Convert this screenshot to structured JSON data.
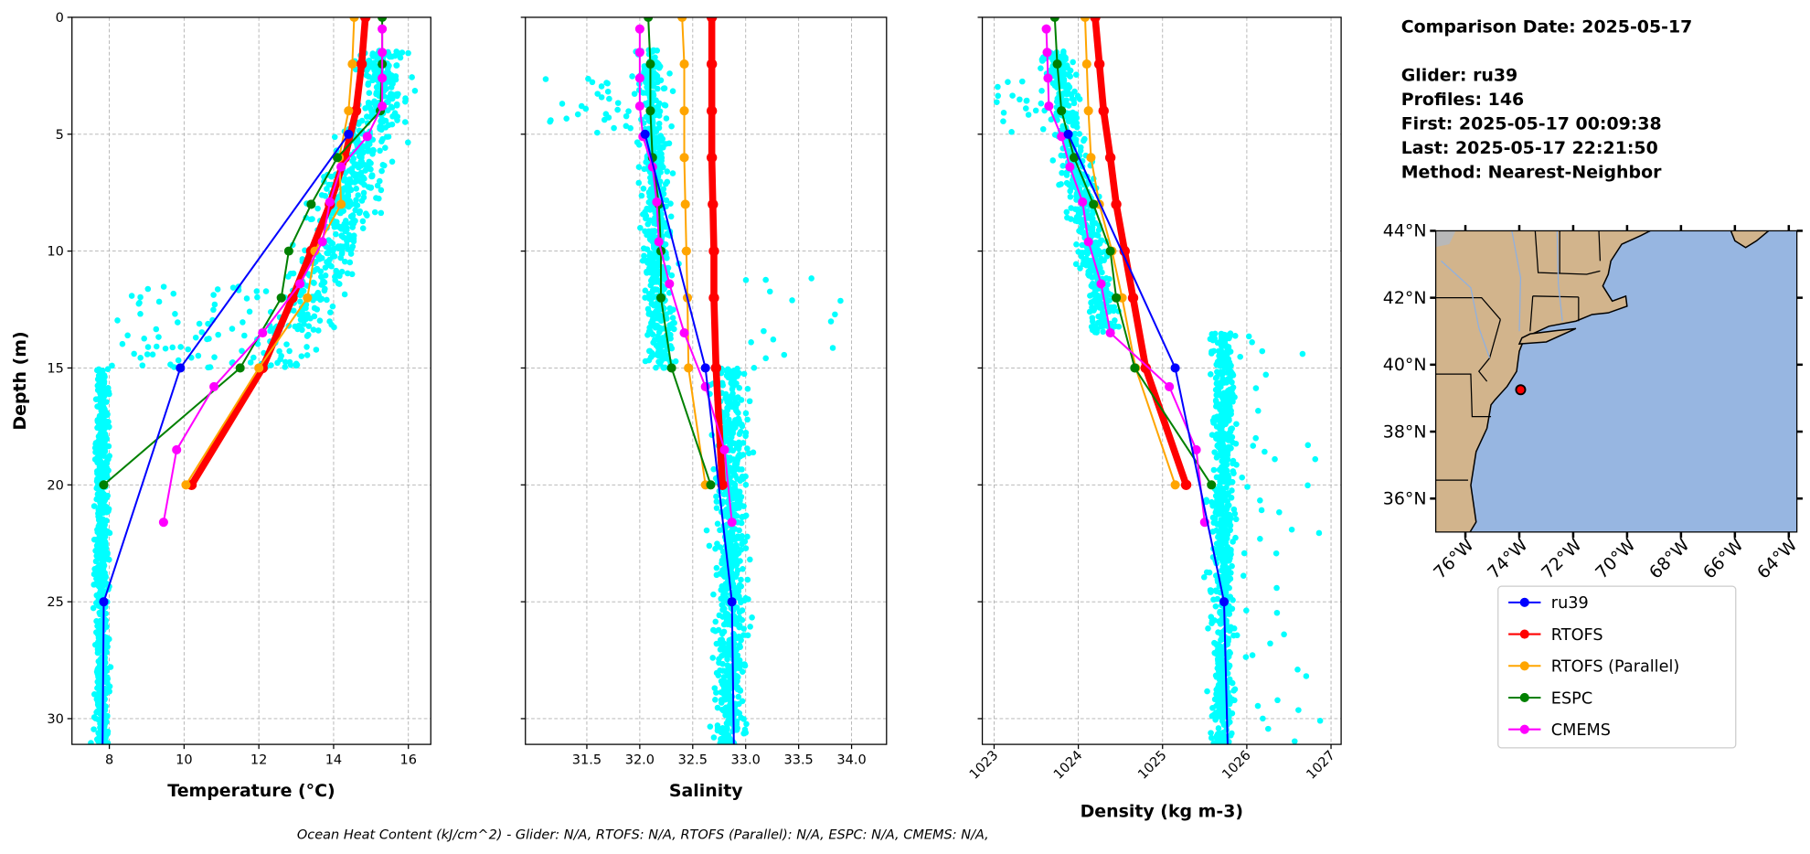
{
  "info": {
    "comparison_date": "Comparison Date: 2025-05-17",
    "glider": "Glider: ru39",
    "profiles": "Profiles: 146",
    "first": "First: 2025-05-17 00:09:38",
    "last": "Last: 2025-05-17 22:21:50",
    "method": "Method: Nearest-Neighbor"
  },
  "footer": "Ocean Heat Content (kJ/cm^2) - Glider: N/A,  RTOFS: N/A,  RTOFS (Parallel): N/A,  ESPC: N/A,  CMEMS: N/A,",
  "colors": {
    "ru39": "#0000ff",
    "RTOFS": "#ff0000",
    "RTOFS (Parallel)": "#ffa500",
    "ESPC": "#008000",
    "CMEMS": "#ff00ff",
    "glider_scatter": "#00ffff",
    "land": "#d2b48c",
    "ocean": "#97b6e1"
  },
  "chart_data": [
    {
      "type": "line",
      "key": "temp",
      "xlabel": "Temperature (°C)",
      "ylabel": "Depth (m)",
      "xlim": [
        7.0,
        16.6
      ],
      "ylim": [
        31.1,
        0
      ],
      "xticks": [
        "8",
        "10",
        "12",
        "14",
        "16"
      ],
      "yticks": [
        "0",
        "5",
        "10",
        "15",
        "20",
        "25",
        "30"
      ],
      "grid": true,
      "series": [
        {
          "name": "ru39",
          "depth": [
            5,
            15,
            25,
            35
          ],
          "values": [
            14.4,
            9.9,
            7.85,
            7.8
          ]
        },
        {
          "name": "RTOFS",
          "depth": [
            0,
            2,
            4,
            6,
            8,
            10,
            12,
            15,
            20
          ],
          "values": [
            14.85,
            14.75,
            14.6,
            14.3,
            13.9,
            13.4,
            12.9,
            12.1,
            10.2
          ]
        },
        {
          "name": "RTOFS (Parallel)",
          "depth": [
            0,
            2,
            4,
            6,
            8,
            10,
            12,
            15,
            20
          ],
          "values": [
            14.55,
            14.5,
            14.4,
            14.15,
            14.2,
            13.5,
            13.3,
            12.0,
            10.05
          ]
        },
        {
          "name": "ESPC",
          "depth": [
            0,
            2,
            4,
            6,
            8,
            10,
            12,
            15,
            20
          ],
          "values": [
            15.3,
            15.3,
            15.25,
            14.1,
            13.4,
            12.8,
            12.6,
            11.5,
            7.85
          ]
        },
        {
          "name": "CMEMS",
          "depth": [
            0.5,
            1.5,
            2.6,
            3.8,
            5.1,
            6.4,
            7.9,
            9.6,
            11.4,
            13.5,
            15.8,
            18.5,
            21.6
          ],
          "values": [
            15.3,
            15.3,
            15.3,
            15.3,
            14.9,
            14.2,
            13.9,
            13.7,
            13.1,
            12.1,
            10.8,
            9.8,
            9.45
          ]
        }
      ]
    },
    {
      "type": "line",
      "key": "sal",
      "xlabel": "Salinity",
      "xlim": [
        30.92,
        34.33
      ],
      "ylim": [
        31.1,
        0
      ],
      "xticks": [
        "31.5",
        "32.0",
        "32.5",
        "33.0",
        "33.5",
        "34.0"
      ],
      "grid": true,
      "series": [
        {
          "name": "ru39",
          "depth": [
            5,
            15,
            25,
            35
          ],
          "values": [
            32.05,
            32.62,
            32.87,
            32.9
          ]
        },
        {
          "name": "RTOFS",
          "depth": [
            0,
            2,
            4,
            6,
            8,
            10,
            12,
            15,
            20
          ],
          "values": [
            32.68,
            32.68,
            32.68,
            32.68,
            32.69,
            32.7,
            32.7,
            32.72,
            32.78
          ]
        },
        {
          "name": "RTOFS (Parallel)",
          "depth": [
            0,
            2,
            4,
            6,
            8,
            10,
            12,
            15,
            20
          ],
          "values": [
            32.4,
            32.42,
            32.42,
            32.42,
            32.43,
            32.44,
            32.45,
            32.46,
            32.62
          ]
        },
        {
          "name": "ESPC",
          "depth": [
            0,
            2,
            4,
            6,
            8,
            10,
            12,
            15,
            20
          ],
          "values": [
            32.08,
            32.1,
            32.1,
            32.12,
            32.18,
            32.2,
            32.2,
            32.3,
            32.67
          ]
        },
        {
          "name": "CMEMS",
          "depth": [
            0.5,
            1.5,
            2.6,
            3.8,
            5.1,
            6.4,
            7.9,
            9.6,
            11.4,
            13.5,
            15.8,
            18.5,
            21.6
          ],
          "values": [
            32.0,
            32.0,
            32.0,
            32.0,
            32.03,
            32.12,
            32.16,
            32.18,
            32.28,
            32.42,
            32.62,
            32.8,
            32.87
          ]
        }
      ]
    },
    {
      "type": "line",
      "key": "dens",
      "xlabel": "Density (kg m-3)",
      "xlim": [
        1022.86,
        1027.12
      ],
      "ylim": [
        31.1,
        0
      ],
      "xticks": [
        "1023",
        "1024",
        "1025",
        "1026",
        "1027"
      ],
      "grid": true,
      "series": [
        {
          "name": "ru39",
          "depth": [
            5,
            15,
            25,
            35
          ],
          "values": [
            1023.88,
            1025.15,
            1025.73,
            1025.8
          ]
        },
        {
          "name": "RTOFS",
          "depth": [
            0,
            2,
            4,
            6,
            8,
            10,
            12,
            15,
            20
          ],
          "values": [
            1024.2,
            1024.25,
            1024.3,
            1024.38,
            1024.45,
            1024.55,
            1024.65,
            1024.8,
            1025.28
          ]
        },
        {
          "name": "RTOFS (Parallel)",
          "depth": [
            0,
            2,
            4,
            6,
            8,
            10,
            12,
            15,
            20
          ],
          "values": [
            1024.08,
            1024.1,
            1024.12,
            1024.15,
            1024.25,
            1024.4,
            1024.52,
            1024.68,
            1025.15
          ]
        },
        {
          "name": "ESPC",
          "depth": [
            0,
            2,
            4,
            6,
            8,
            10,
            12,
            15,
            20
          ],
          "values": [
            1023.72,
            1023.75,
            1023.8,
            1023.95,
            1024.18,
            1024.38,
            1024.45,
            1024.67,
            1025.58
          ]
        },
        {
          "name": "CMEMS",
          "depth": [
            0.5,
            1.5,
            2.6,
            3.8,
            5.1,
            6.4,
            7.9,
            9.6,
            11.4,
            13.5,
            15.8,
            18.5,
            21.6
          ],
          "values": [
            1023.62,
            1023.63,
            1023.64,
            1023.65,
            1023.8,
            1023.9,
            1024.05,
            1024.12,
            1024.27,
            1024.38,
            1025.08,
            1025.4,
            1025.5
          ]
        }
      ]
    }
  ],
  "map": {
    "lon_range": [
      -77.1,
      -63.7
    ],
    "lat_range": [
      35,
      44
    ],
    "lat_ticks": [
      "36°N",
      "38°N",
      "40°N",
      "42°N",
      "44°N"
    ],
    "lon_ticks": [
      "76°W",
      "74°W",
      "72°W",
      "70°W",
      "68°W",
      "66°W",
      "64°W"
    ],
    "glider_position": {
      "lon": -73.95,
      "lat": 39.25
    }
  },
  "legend": [
    "ru39",
    "RTOFS",
    "RTOFS (Parallel)",
    "ESPC",
    "CMEMS"
  ]
}
